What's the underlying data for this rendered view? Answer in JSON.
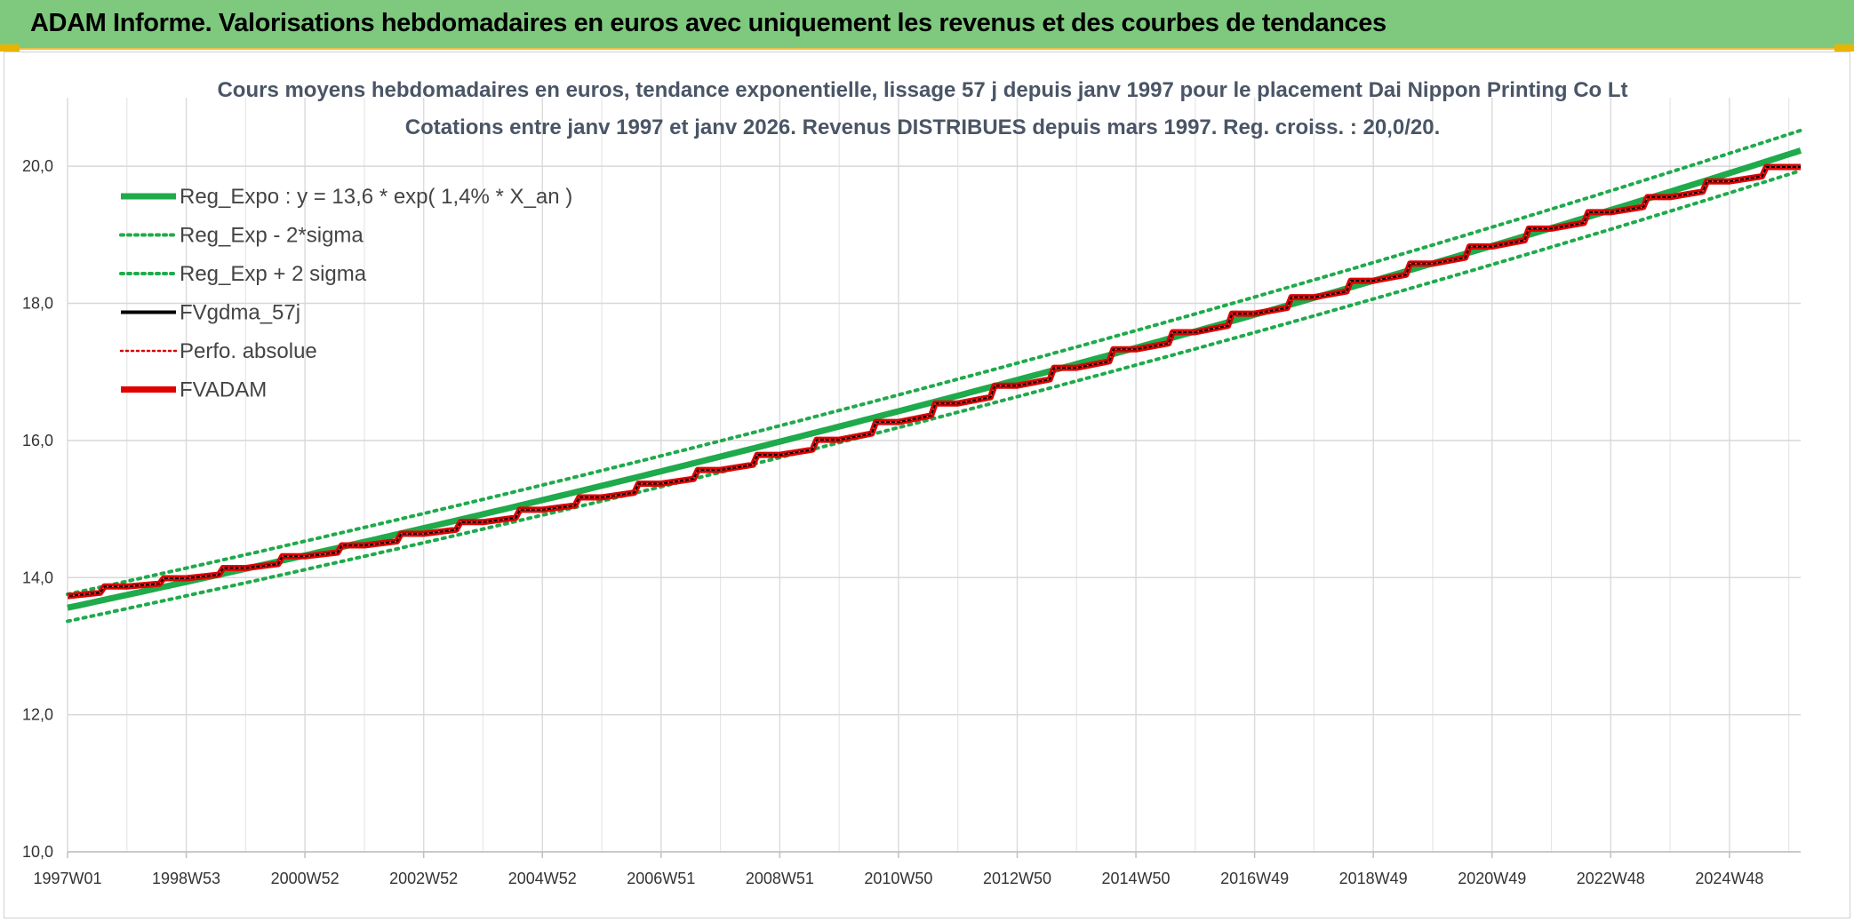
{
  "header": {
    "title": "ADAM Informe. Valorisations hebdomadaires en euros avec uniquement les revenus et des courbes de tendances"
  },
  "chart_data": {
    "type": "line",
    "title": "Cours moyens hebdomadaires en euros, tendance exponentielle, lissage 57 j depuis janv 1997 pour le placement Dai Nippon Printing Co Lt",
    "subtitle": "Cotations entre janv 1997 et janv 2026. Revenus DISTRIBUES depuis mars 1997. Reg. croiss. : 20,0/20.",
    "xlabel": "",
    "ylabel": "",
    "x_range": [
      1997.0,
      2026.2
    ],
    "x_ticks": [
      {
        "label": "1997W01",
        "year": 1997.0
      },
      {
        "label": "1998W53",
        "year": 1999.0
      },
      {
        "label": "2000W52",
        "year": 2001.0
      },
      {
        "label": "2002W52",
        "year": 2003.0
      },
      {
        "label": "2004W52",
        "year": 2005.0
      },
      {
        "label": "2006W51",
        "year": 2007.0
      },
      {
        "label": "2008W51",
        "year": 2009.0
      },
      {
        "label": "2010W50",
        "year": 2011.0
      },
      {
        "label": "2012W50",
        "year": 2013.0
      },
      {
        "label": "2014W50",
        "year": 2015.0
      },
      {
        "label": "2016W49",
        "year": 2017.0
      },
      {
        "label": "2018W49",
        "year": 2019.0
      },
      {
        "label": "2020W49",
        "year": 2021.0
      },
      {
        "label": "2022W48",
        "year": 2023.0
      },
      {
        "label": "2024W48",
        "year": 2025.0
      }
    ],
    "ylim": [
      10,
      21
    ],
    "y_ticks": [
      "10,0",
      "12,0",
      "14,0",
      "16,0",
      "18,0",
      "20,0"
    ],
    "y_tick_values": [
      10,
      12,
      14,
      16,
      18,
      20
    ],
    "grid": true,
    "legend_position": "top-left",
    "regression": {
      "a": 13.56,
      "rate": 0.0137,
      "sigma_factor": 0.0145
    },
    "series": [
      {
        "name": "Reg_Expo : y = 13,6 * exp( 1,4% *  X_an )",
        "color": "#1faa4b",
        "style": "solid-thick"
      },
      {
        "name": "Reg_Exp - 2*sigma",
        "color": "#1faa4b",
        "style": "dotted"
      },
      {
        "name": "Reg_Exp + 2 sigma",
        "color": "#1faa4b",
        "style": "dotted"
      },
      {
        "name": "FVgdma_57j",
        "color": "#000000",
        "style": "solid"
      },
      {
        "name": "Perfo. absolue",
        "color": "#d40000",
        "style": "dotted"
      },
      {
        "name": "FVADAM",
        "color": "#e00000",
        "style": "solid-thick"
      }
    ],
    "fvadam_yearly": [
      {
        "year": 1997.0,
        "value": 13.73
      },
      {
        "year": 1998.0,
        "value": 13.87
      },
      {
        "year": 1999.0,
        "value": 13.99
      },
      {
        "year": 2000.0,
        "value": 14.14
      },
      {
        "year": 2001.0,
        "value": 14.31
      },
      {
        "year": 2002.0,
        "value": 14.47
      },
      {
        "year": 2003.0,
        "value": 14.64
      },
      {
        "year": 2004.0,
        "value": 14.81
      },
      {
        "year": 2005.0,
        "value": 14.99
      },
      {
        "year": 2006.0,
        "value": 15.17
      },
      {
        "year": 2007.0,
        "value": 15.37
      },
      {
        "year": 2008.0,
        "value": 15.57
      },
      {
        "year": 2009.0,
        "value": 15.79
      },
      {
        "year": 2010.0,
        "value": 16.01
      },
      {
        "year": 2011.0,
        "value": 16.27
      },
      {
        "year": 2012.0,
        "value": 16.54
      },
      {
        "year": 2013.0,
        "value": 16.8
      },
      {
        "year": 2014.0,
        "value": 17.06
      },
      {
        "year": 2015.0,
        "value": 17.33
      },
      {
        "year": 2016.0,
        "value": 17.58
      },
      {
        "year": 2017.0,
        "value": 17.85
      },
      {
        "year": 2018.0,
        "value": 18.09
      },
      {
        "year": 2019.0,
        "value": 18.33
      },
      {
        "year": 2020.0,
        "value": 18.58
      },
      {
        "year": 2021.0,
        "value": 18.83
      },
      {
        "year": 2022.0,
        "value": 19.09
      },
      {
        "year": 2023.0,
        "value": 19.33
      },
      {
        "year": 2024.0,
        "value": 19.55
      },
      {
        "year": 2025.0,
        "value": 19.78
      },
      {
        "year": 2026.0,
        "value": 19.99
      }
    ]
  }
}
